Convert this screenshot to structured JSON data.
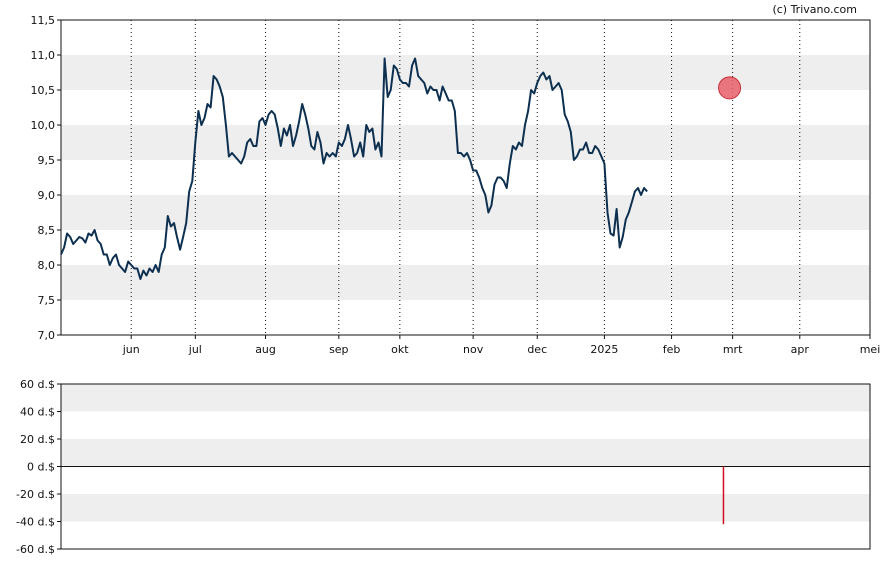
{
  "credit": "(c) Trivano.com",
  "colors": {
    "line": "#0d3050",
    "band": "#eeeeee",
    "marker_fill": "#e8606a",
    "marker_stroke": "#c8303a",
    "bar": "#d01020"
  },
  "chart_data": [
    {
      "type": "line",
      "yticks": [
        "7,0",
        "7,5",
        "8,0",
        "8,5",
        "9,0",
        "9,5",
        "10,0",
        "10,5",
        "11,0",
        "11,5"
      ],
      "ylim": [
        7.0,
        11.5
      ],
      "xlim": [
        0,
        265
      ],
      "xticks": [
        {
          "label": "jun",
          "x": 23
        },
        {
          "label": "jul",
          "x": 44
        },
        {
          "label": "aug",
          "x": 67
        },
        {
          "label": "sep",
          "x": 91
        },
        {
          "label": "okt",
          "x": 111
        },
        {
          "label": "nov",
          "x": 135
        },
        {
          "label": "dec",
          "x": 156
        },
        {
          "label": "2025",
          "x": 178
        },
        {
          "label": "feb",
          "x": 200
        },
        {
          "label": "mrt",
          "x": 220
        },
        {
          "label": "apr",
          "x": 242
        },
        {
          "label": "mei",
          "x": 265
        }
      ],
      "grid": "vertical dotted at months, alternating horizontal bands",
      "marker": {
        "x": 219,
        "y": 10.53
      },
      "series": [
        {
          "points": [
            [
              0,
              8.15
            ],
            [
              1,
              8.25
            ],
            [
              2,
              8.45
            ],
            [
              3,
              8.4
            ],
            [
              4,
              8.3
            ],
            [
              5,
              8.35
            ],
            [
              6,
              8.4
            ],
            [
              7,
              8.38
            ],
            [
              8,
              8.32
            ],
            [
              9,
              8.45
            ],
            [
              10,
              8.42
            ],
            [
              11,
              8.5
            ],
            [
              12,
              8.35
            ],
            [
              13,
              8.3
            ],
            [
              14,
              8.15
            ],
            [
              15,
              8.15
            ],
            [
              16,
              8.0
            ],
            [
              17,
              8.1
            ],
            [
              18,
              8.15
            ],
            [
              19,
              8.0
            ],
            [
              20,
              7.95
            ],
            [
              21,
              7.9
            ],
            [
              22,
              8.05
            ],
            [
              23,
              8.0
            ],
            [
              24,
              7.95
            ],
            [
              25,
              7.95
            ],
            [
              26,
              7.8
            ],
            [
              27,
              7.92
            ],
            [
              28,
              7.85
            ],
            [
              29,
              7.95
            ],
            [
              30,
              7.9
            ],
            [
              31,
              8.0
            ],
            [
              32,
              7.9
            ],
            [
              33,
              8.15
            ],
            [
              34,
              8.25
            ],
            [
              35,
              8.7
            ],
            [
              36,
              8.55
            ],
            [
              37,
              8.6
            ],
            [
              38,
              8.4
            ],
            [
              39,
              8.22
            ],
            [
              40,
              8.4
            ],
            [
              41,
              8.6
            ],
            [
              42,
              9.05
            ],
            [
              43,
              9.2
            ],
            [
              44,
              9.75
            ],
            [
              45,
              10.2
            ],
            [
              46,
              10.0
            ],
            [
              47,
              10.1
            ],
            [
              48,
              10.3
            ],
            [
              49,
              10.25
            ],
            [
              50,
              10.7
            ],
            [
              51,
              10.65
            ],
            [
              52,
              10.55
            ],
            [
              53,
              10.4
            ],
            [
              54,
              10.0
            ],
            [
              55,
              9.55
            ],
            [
              56,
              9.6
            ],
            [
              57,
              9.55
            ],
            [
              58,
              9.5
            ],
            [
              59,
              9.45
            ],
            [
              60,
              9.55
            ],
            [
              61,
              9.75
            ],
            [
              62,
              9.8
            ],
            [
              63,
              9.7
            ],
            [
              64,
              9.7
            ],
            [
              65,
              10.05
            ],
            [
              66,
              10.1
            ],
            [
              67,
              10.0
            ],
            [
              68,
              10.15
            ],
            [
              69,
              10.2
            ],
            [
              70,
              10.15
            ],
            [
              71,
              9.95
            ],
            [
              72,
              9.7
            ],
            [
              73,
              9.95
            ],
            [
              74,
              9.85
            ],
            [
              75,
              10.0
            ],
            [
              76,
              9.7
            ],
            [
              77,
              9.85
            ],
            [
              78,
              10.05
            ],
            [
              79,
              10.3
            ],
            [
              80,
              10.15
            ],
            [
              81,
              9.95
            ],
            [
              82,
              9.7
            ],
            [
              83,
              9.65
            ],
            [
              84,
              9.9
            ],
            [
              85,
              9.75
            ],
            [
              86,
              9.45
            ],
            [
              87,
              9.6
            ],
            [
              88,
              9.55
            ],
            [
              89,
              9.6
            ],
            [
              90,
              9.55
            ],
            [
              91,
              9.75
            ],
            [
              92,
              9.7
            ],
            [
              93,
              9.8
            ],
            [
              94,
              10.0
            ],
            [
              95,
              9.8
            ],
            [
              96,
              9.55
            ],
            [
              97,
              9.6
            ],
            [
              98,
              9.75
            ],
            [
              99,
              9.55
            ],
            [
              100,
              10.0
            ],
            [
              101,
              9.9
            ],
            [
              102,
              9.95
            ],
            [
              103,
              9.65
            ],
            [
              104,
              9.75
            ],
            [
              105,
              9.55
            ],
            [
              106,
              10.95
            ],
            [
              107,
              10.4
            ],
            [
              108,
              10.5
            ],
            [
              109,
              10.85
            ],
            [
              110,
              10.8
            ],
            [
              111,
              10.65
            ],
            [
              112,
              10.6
            ],
            [
              113,
              10.6
            ],
            [
              114,
              10.55
            ],
            [
              115,
              10.85
            ],
            [
              116,
              10.95
            ],
            [
              117,
              10.7
            ],
            [
              118,
              10.65
            ],
            [
              119,
              10.6
            ],
            [
              120,
              10.45
            ],
            [
              121,
              10.55
            ],
            [
              122,
              10.5
            ],
            [
              123,
              10.5
            ],
            [
              124,
              10.35
            ],
            [
              125,
              10.55
            ],
            [
              126,
              10.45
            ],
            [
              127,
              10.35
            ],
            [
              128,
              10.35
            ],
            [
              129,
              10.2
            ],
            [
              130,
              9.6
            ],
            [
              131,
              9.6
            ],
            [
              132,
              9.55
            ],
            [
              133,
              9.6
            ],
            [
              134,
              9.5
            ],
            [
              135,
              9.35
            ],
            [
              136,
              9.35
            ],
            [
              137,
              9.25
            ],
            [
              138,
              9.1
            ],
            [
              139,
              9.0
            ],
            [
              140,
              8.75
            ],
            [
              141,
              8.85
            ],
            [
              142,
              9.15
            ],
            [
              143,
              9.25
            ],
            [
              144,
              9.25
            ],
            [
              145,
              9.2
            ],
            [
              146,
              9.1
            ],
            [
              147,
              9.45
            ],
            [
              148,
              9.7
            ],
            [
              149,
              9.65
            ],
            [
              150,
              9.75
            ],
            [
              151,
              9.7
            ],
            [
              152,
              10.0
            ],
            [
              153,
              10.2
            ],
            [
              154,
              10.5
            ],
            [
              155,
              10.45
            ],
            [
              156,
              10.6
            ],
            [
              157,
              10.7
            ],
            [
              158,
              10.75
            ],
            [
              159,
              10.65
            ],
            [
              160,
              10.7
            ],
            [
              161,
              10.5
            ],
            [
              162,
              10.55
            ],
            [
              163,
              10.6
            ],
            [
              164,
              10.5
            ],
            [
              165,
              10.15
            ],
            [
              166,
              10.05
            ],
            [
              167,
              9.9
            ],
            [
              168,
              9.5
            ],
            [
              169,
              9.55
            ],
            [
              170,
              9.65
            ],
            [
              171,
              9.65
            ],
            [
              172,
              9.75
            ],
            [
              173,
              9.6
            ],
            [
              174,
              9.6
            ],
            [
              175,
              9.7
            ],
            [
              176,
              9.65
            ],
            [
              177,
              9.55
            ],
            [
              178,
              9.45
            ],
            [
              179,
              8.75
            ],
            [
              180,
              8.45
            ],
            [
              181,
              8.42
            ],
            [
              182,
              8.8
            ],
            [
              183,
              8.25
            ],
            [
              184,
              8.4
            ],
            [
              185,
              8.65
            ],
            [
              186,
              8.75
            ],
            [
              187,
              8.9
            ],
            [
              188,
              9.05
            ],
            [
              189,
              9.1
            ],
            [
              190,
              9.0
            ],
            [
              191,
              9.1
            ],
            [
              192,
              9.05
            ]
          ]
        }
      ]
    },
    {
      "type": "bar",
      "yticks": [
        "60 d.$",
        "40 d.$",
        "20 d.$",
        "0 d.$",
        "-20 d.$",
        "-40 d.$",
        "-60 d.$"
      ],
      "ylim": [
        -60,
        60
      ],
      "xlim": [
        0,
        265
      ],
      "grid": "alternating horizontal bands",
      "bars": [
        {
          "x": 217,
          "value": -42
        }
      ]
    }
  ]
}
